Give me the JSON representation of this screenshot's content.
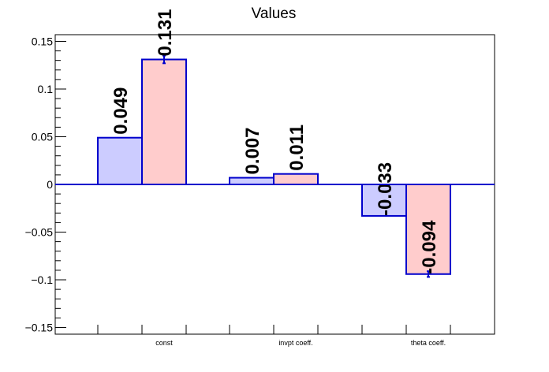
{
  "chart_data": {
    "type": "bar",
    "title": "Values",
    "xlabel": "",
    "ylabel": "",
    "categories": [
      "const",
      "invpt coeff.",
      "theta coeff."
    ],
    "series": [
      {
        "values": [
          0.049,
          0.007,
          -0.033
        ],
        "errors": [
          0.0,
          0.0,
          0.0
        ],
        "fill": "#ccccff",
        "stroke": "#0000cc"
      },
      {
        "values": [
          0.131,
          0.011,
          -0.094
        ],
        "errors": [
          0.004,
          0.0,
          0.003
        ],
        "fill": "#ffcccc",
        "stroke": "#0000cc"
      }
    ],
    "data_labels": [
      [
        "0.049",
        "0.007",
        "-0.033"
      ],
      [
        "0.131",
        "0.011",
        "-0.094"
      ]
    ],
    "ylim": [
      -0.157,
      0.157
    ],
    "yticks": [
      -0.15,
      -0.1,
      -0.05,
      0,
      0.05,
      0.1,
      0.15
    ],
    "ytick_labels": [
      "−0.15",
      "−0.1",
      "−0.05",
      "0",
      "0.05",
      "0.1",
      "0.15"
    ],
    "grid": false,
    "legend": "none"
  }
}
